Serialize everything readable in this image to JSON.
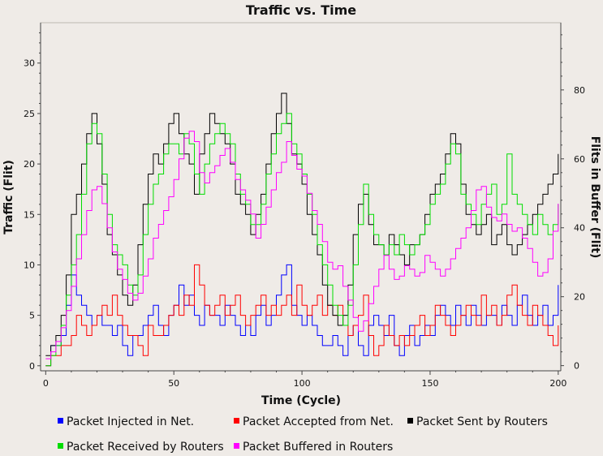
{
  "chart_data": {
    "type": "line",
    "title": "Traffic vs. Time",
    "xlabel": "Time (Cycle)",
    "ylabel": "Traffic (Flit)",
    "y2label": "Flits in Buffer (Flit)",
    "xlim": [
      -2,
      201
    ],
    "ylim": [
      -0.5,
      34
    ],
    "y2lim": [
      -1.5,
      99.5
    ],
    "xticks": [
      0,
      50,
      100,
      150,
      200
    ],
    "yticks": [
      0,
      5,
      10,
      15,
      20,
      25,
      30
    ],
    "y2ticks": [
      0,
      20,
      40,
      60,
      80
    ],
    "grid": false,
    "legend_position": "bottom",
    "series": [
      {
        "name": "Packet Injected in Net.",
        "color": "#0000ff",
        "axis": "left",
        "x": [
          0,
          2,
          4,
          6,
          8,
          10,
          12,
          14,
          16,
          18,
          20,
          22,
          24,
          26,
          28,
          30,
          32,
          34,
          36,
          38,
          40,
          42,
          44,
          46,
          48,
          50,
          52,
          54,
          56,
          58,
          60,
          62,
          64,
          66,
          68,
          70,
          72,
          74,
          76,
          78,
          80,
          82,
          84,
          86,
          88,
          90,
          92,
          94,
          96,
          98,
          100,
          102,
          104,
          106,
          108,
          110,
          112,
          114,
          116,
          118,
          120,
          122,
          124,
          126,
          128,
          130,
          132,
          134,
          136,
          138,
          140,
          142,
          144,
          146,
          148,
          150,
          152,
          154,
          156,
          158,
          160,
          162,
          164,
          166,
          168,
          170,
          172,
          174,
          176,
          178,
          180,
          182,
          184,
          186,
          188,
          190,
          192,
          194,
          196,
          198,
          200
        ],
        "values": [
          0,
          2,
          2,
          3,
          6,
          9,
          7,
          6,
          5,
          4,
          5,
          4,
          4,
          3,
          4,
          2,
          1,
          3,
          3,
          4,
          5,
          6,
          4,
          3,
          5,
          6,
          8,
          6,
          7,
          5,
          4,
          6,
          5,
          5,
          4,
          6,
          5,
          4,
          3,
          4,
          3,
          5,
          6,
          4,
          5,
          7,
          9,
          10,
          6,
          5,
          4,
          5,
          4,
          3,
          2,
          2,
          3,
          2,
          1,
          3,
          4,
          2,
          1,
          4,
          5,
          4,
          3,
          5,
          2,
          1,
          3,
          4,
          2,
          3,
          4,
          3,
          5,
          6,
          5,
          4,
          6,
          5,
          4,
          6,
          5,
          4,
          5,
          5,
          4,
          6,
          5,
          4,
          6,
          7,
          5,
          4,
          5,
          6,
          4,
          5,
          8
        ]
      },
      {
        "name": "Packet Accepted from Net.",
        "color": "#ff0000",
        "axis": "left",
        "x": [
          0,
          2,
          4,
          6,
          8,
          10,
          12,
          14,
          16,
          18,
          20,
          22,
          24,
          26,
          28,
          30,
          32,
          34,
          36,
          38,
          40,
          42,
          44,
          46,
          48,
          50,
          52,
          54,
          56,
          58,
          60,
          62,
          64,
          66,
          68,
          70,
          72,
          74,
          76,
          78,
          80,
          82,
          84,
          86,
          88,
          90,
          92,
          94,
          96,
          98,
          100,
          102,
          104,
          106,
          108,
          110,
          112,
          114,
          116,
          118,
          120,
          122,
          124,
          126,
          128,
          130,
          132,
          134,
          136,
          138,
          140,
          142,
          144,
          146,
          148,
          150,
          152,
          154,
          156,
          158,
          160,
          162,
          164,
          166,
          168,
          170,
          172,
          174,
          176,
          178,
          180,
          182,
          184,
          186,
          188,
          190,
          192,
          194,
          196,
          198,
          200
        ],
        "values": [
          0,
          1,
          1,
          2,
          2,
          3,
          5,
          4,
          3,
          4,
          5,
          6,
          5,
          7,
          5,
          4,
          3,
          3,
          2,
          1,
          4,
          3,
          3,
          4,
          5,
          6,
          5,
          7,
          6,
          10,
          8,
          6,
          5,
          6,
          7,
          5,
          6,
          7,
          5,
          4,
          5,
          6,
          7,
          5,
          6,
          5,
          6,
          7,
          5,
          8,
          6,
          5,
          6,
          7,
          5,
          6,
          5,
          6,
          4,
          3,
          4,
          5,
          7,
          3,
          1,
          2,
          4,
          3,
          2,
          3,
          2,
          3,
          4,
          5,
          3,
          4,
          6,
          5,
          4,
          3,
          4,
          5,
          6,
          5,
          4,
          7,
          5,
          6,
          4,
          5,
          7,
          8,
          6,
          5,
          4,
          6,
          5,
          4,
          3,
          2,
          4
        ]
      },
      {
        "name": "Packet Sent by Routers",
        "color": "#000000",
        "axis": "left",
        "x": [
          0,
          2,
          4,
          6,
          8,
          10,
          12,
          14,
          16,
          18,
          20,
          22,
          24,
          26,
          28,
          30,
          32,
          34,
          36,
          38,
          40,
          42,
          44,
          46,
          48,
          50,
          52,
          54,
          56,
          58,
          60,
          62,
          64,
          66,
          68,
          70,
          72,
          74,
          76,
          78,
          80,
          82,
          84,
          86,
          88,
          90,
          92,
          94,
          96,
          98,
          100,
          102,
          104,
          106,
          108,
          110,
          112,
          114,
          116,
          118,
          120,
          122,
          124,
          126,
          128,
          130,
          132,
          134,
          136,
          138,
          140,
          142,
          144,
          146,
          148,
          150,
          152,
          154,
          156,
          158,
          160,
          162,
          164,
          166,
          168,
          170,
          172,
          174,
          176,
          178,
          180,
          182,
          184,
          186,
          188,
          190,
          192,
          194,
          196,
          198,
          200
        ],
        "values": [
          1,
          2,
          3,
          5,
          9,
          15,
          17,
          20,
          23,
          25,
          22,
          18,
          13,
          11,
          9,
          7,
          6,
          8,
          12,
          16,
          19,
          21,
          20,
          22,
          24,
          25,
          23,
          21,
          20,
          17,
          21,
          23,
          25,
          24,
          23,
          22,
          20,
          17,
          16,
          15,
          13,
          15,
          17,
          20,
          23,
          25,
          27,
          24,
          21,
          20,
          18,
          15,
          13,
          11,
          8,
          6,
          5,
          4,
          5,
          8,
          13,
          16,
          17,
          14,
          12,
          12,
          11,
          13,
          12,
          11,
          10,
          12,
          12,
          13,
          15,
          17,
          18,
          19,
          21,
          23,
          22,
          18,
          15,
          14,
          13,
          14,
          15,
          12,
          13,
          14,
          12,
          11,
          12,
          13,
          14,
          15,
          16,
          17,
          18,
          19,
          21
        ]
      },
      {
        "name": "Packet Received by Routers",
        "color": "#00dd00",
        "axis": "left",
        "x": [
          0,
          2,
          4,
          6,
          8,
          10,
          12,
          14,
          16,
          18,
          20,
          22,
          24,
          26,
          28,
          30,
          32,
          34,
          36,
          38,
          40,
          42,
          44,
          46,
          48,
          50,
          52,
          54,
          56,
          58,
          60,
          62,
          64,
          66,
          68,
          70,
          72,
          74,
          76,
          78,
          80,
          82,
          84,
          86,
          88,
          90,
          92,
          94,
          96,
          98,
          100,
          102,
          104,
          106,
          108,
          110,
          112,
          114,
          116,
          118,
          120,
          122,
          124,
          126,
          128,
          130,
          132,
          134,
          136,
          138,
          140,
          142,
          144,
          146,
          148,
          150,
          152,
          154,
          156,
          158,
          160,
          162,
          164,
          166,
          168,
          170,
          172,
          174,
          176,
          178,
          180,
          182,
          184,
          186,
          188,
          190,
          192,
          194,
          196,
          198,
          200
        ],
        "values": [
          0,
          1,
          2,
          4,
          7,
          10,
          13,
          17,
          22,
          24,
          23,
          19,
          15,
          12,
          11,
          10,
          8,
          7,
          9,
          13,
          16,
          18,
          19,
          21,
          22,
          22,
          21,
          23,
          22,
          19,
          17,
          20,
          22,
          23,
          24,
          23,
          22,
          19,
          17,
          16,
          14,
          14,
          16,
          19,
          21,
          23,
          24,
          25,
          22,
          21,
          19,
          17,
          15,
          12,
          10,
          8,
          6,
          5,
          4,
          6,
          10,
          14,
          18,
          15,
          13,
          12,
          11,
          12,
          11,
          13,
          12,
          11,
          12,
          13,
          14,
          16,
          17,
          18,
          20,
          22,
          21,
          17,
          16,
          15,
          14,
          16,
          17,
          18,
          15,
          16,
          21,
          17,
          16,
          15,
          14,
          13,
          15,
          14,
          13,
          14,
          16
        ]
      },
      {
        "name": "Packet Buffered in Routers",
        "color": "#ff00ff",
        "axis": "right",
        "x": [
          0,
          2,
          4,
          6,
          8,
          10,
          12,
          14,
          16,
          18,
          20,
          22,
          24,
          26,
          28,
          30,
          32,
          34,
          36,
          38,
          40,
          42,
          44,
          46,
          48,
          50,
          52,
          54,
          56,
          58,
          60,
          62,
          64,
          66,
          68,
          70,
          72,
          74,
          76,
          78,
          80,
          82,
          84,
          86,
          88,
          90,
          92,
          94,
          96,
          98,
          100,
          102,
          104,
          106,
          108,
          110,
          112,
          114,
          116,
          118,
          120,
          122,
          124,
          126,
          128,
          130,
          132,
          134,
          136,
          138,
          140,
          142,
          144,
          146,
          148,
          150,
          152,
          154,
          156,
          158,
          160,
          162,
          164,
          166,
          168,
          170,
          172,
          174,
          176,
          178,
          180,
          182,
          184,
          186,
          188,
          190,
          192,
          194,
          196,
          198,
          200
        ],
        "values": [
          2,
          4,
          7,
          11,
          16,
          23,
          31,
          38,
          45,
          51,
          52,
          47,
          40,
          33,
          28,
          25,
          21,
          19,
          21,
          26,
          31,
          37,
          41,
          45,
          49,
          54,
          60,
          66,
          68,
          65,
          56,
          53,
          56,
          58,
          61,
          63,
          59,
          54,
          51,
          48,
          44,
          37,
          41,
          46,
          51,
          56,
          59,
          65,
          61,
          57,
          55,
          50,
          45,
          41,
          36,
          30,
          28,
          29,
          23,
          19,
          14,
          10,
          13,
          18,
          23,
          28,
          32,
          28,
          25,
          26,
          29,
          28,
          26,
          27,
          32,
          30,
          28,
          26,
          28,
          31,
          34,
          37,
          40,
          45,
          51,
          52,
          46,
          43,
          42,
          44,
          41,
          39,
          40,
          37,
          34,
          30,
          26,
          27,
          31,
          39,
          47
        ]
      }
    ]
  },
  "legend": {
    "items": [
      {
        "label": "Packet Injected in Net.",
        "color": "#0000ff"
      },
      {
        "label": "Packet Accepted from Net.",
        "color": "#ff0000"
      },
      {
        "label": "Packet Sent by Routers",
        "color": "#000000"
      },
      {
        "label": "Packet Received by Routers",
        "color": "#00dd00"
      },
      {
        "label": "Packet Buffered in Routers",
        "color": "#ff00ff"
      }
    ]
  }
}
